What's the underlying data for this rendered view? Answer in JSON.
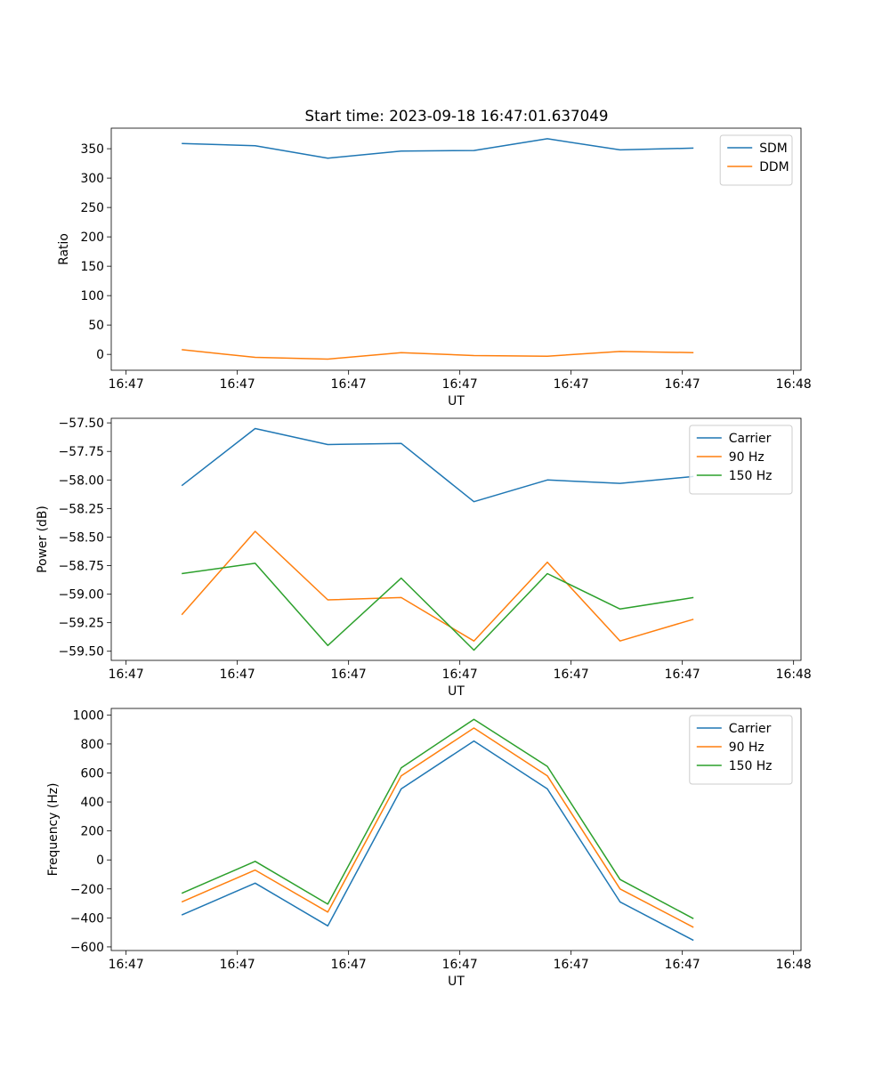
{
  "title": "Start time: 2023-09-18 16:47:01.637049",
  "colors": {
    "blue": "#1f77b4",
    "orange": "#ff7f0e",
    "green": "#2ca02c"
  },
  "chart_data": [
    {
      "type": "line",
      "id": "ratio",
      "xlabel": "UT",
      "ylabel": "Ratio",
      "xlim": [
        -0.2,
        9.1
      ],
      "ylim": [
        -27,
        385
      ],
      "x_ticks": [
        0,
        1.5,
        3,
        4.5,
        6,
        7.5,
        9
      ],
      "x_tick_labels": [
        "16:47",
        "16:47",
        "16:47",
        "16:47",
        "16:47",
        "16:47",
        "16:48"
      ],
      "y_ticks": [
        0,
        50,
        100,
        150,
        200,
        250,
        300,
        350
      ],
      "y_tick_labels": [
        "0",
        "50",
        "100",
        "150",
        "200",
        "250",
        "300",
        "350"
      ],
      "x": [
        0.75,
        1.74,
        2.72,
        3.71,
        4.69,
        5.68,
        6.66,
        7.65
      ],
      "legend": "top-right",
      "series": [
        {
          "name": "SDM",
          "color": "#1f77b4",
          "values": [
            359,
            355,
            334,
            346,
            347,
            367,
            348,
            351
          ]
        },
        {
          "name": "DDM",
          "color": "#ff7f0e",
          "values": [
            8,
            -5,
            -8,
            3,
            -2,
            -3,
            5,
            3
          ]
        }
      ]
    },
    {
      "type": "line",
      "id": "power",
      "xlabel": "UT",
      "ylabel": "Power (dB)",
      "xlim": [
        -0.2,
        9.1
      ],
      "ylim": [
        -59.58,
        -57.46
      ],
      "x_ticks": [
        0,
        1.5,
        3,
        4.5,
        6,
        7.5,
        9
      ],
      "x_tick_labels": [
        "16:47",
        "16:47",
        "16:47",
        "16:47",
        "16:47",
        "16:47",
        "16:48"
      ],
      "y_ticks": [
        -59.5,
        -59.25,
        -59.0,
        -58.75,
        -58.5,
        -58.25,
        -58.0,
        -57.75,
        -57.5
      ],
      "y_tick_labels": [
        "−59.50",
        "−59.25",
        "−59.00",
        "−58.75",
        "−58.50",
        "−58.25",
        "−58.00",
        "−57.75",
        "−57.50"
      ],
      "x": [
        0.75,
        1.74,
        2.72,
        3.71,
        4.69,
        5.68,
        6.66,
        7.65
      ],
      "legend": "top-right",
      "series": [
        {
          "name": "Carrier",
          "color": "#1f77b4",
          "values": [
            -58.05,
            -57.55,
            -57.69,
            -57.68,
            -58.19,
            -58.0,
            -58.03,
            -57.97
          ]
        },
        {
          "name": "90 Hz",
          "color": "#ff7f0e",
          "values": [
            -59.18,
            -58.45,
            -59.05,
            -59.03,
            -59.41,
            -58.72,
            -59.41,
            -59.22
          ]
        },
        {
          "name": "150 Hz",
          "color": "#2ca02c",
          "values": [
            -58.82,
            -58.73,
            -59.45,
            -58.86,
            -59.49,
            -58.82,
            -59.13,
            -59.03
          ]
        }
      ]
    },
    {
      "type": "line",
      "id": "frequency",
      "xlabel": "UT",
      "ylabel": "Frequency (Hz)",
      "xlim": [
        -0.2,
        9.1
      ],
      "ylim": [
        -625,
        1045
      ],
      "x_ticks": [
        0,
        1.5,
        3,
        4.5,
        6,
        7.5,
        9
      ],
      "x_tick_labels": [
        "16:47",
        "16:47",
        "16:47",
        "16:47",
        "16:47",
        "16:47",
        "16:48"
      ],
      "y_ticks": [
        -600,
        -400,
        -200,
        0,
        200,
        400,
        600,
        800,
        1000
      ],
      "y_tick_labels": [
        "−600",
        "−400",
        "−200",
        "0",
        "200",
        "400",
        "600",
        "800",
        "1000"
      ],
      "x": [
        0.75,
        1.74,
        2.72,
        3.71,
        4.69,
        5.68,
        6.66,
        7.65
      ],
      "legend": "top-right",
      "series": [
        {
          "name": "Carrier",
          "color": "#1f77b4",
          "values": [
            -380,
            -160,
            -455,
            490,
            820,
            490,
            -290,
            -555
          ]
        },
        {
          "name": "90 Hz",
          "color": "#ff7f0e",
          "values": [
            -290,
            -70,
            -360,
            580,
            910,
            580,
            -200,
            -465
          ]
        },
        {
          "name": "150 Hz",
          "color": "#2ca02c",
          "values": [
            -230,
            -10,
            -305,
            635,
            970,
            645,
            -135,
            -405
          ]
        }
      ]
    }
  ]
}
